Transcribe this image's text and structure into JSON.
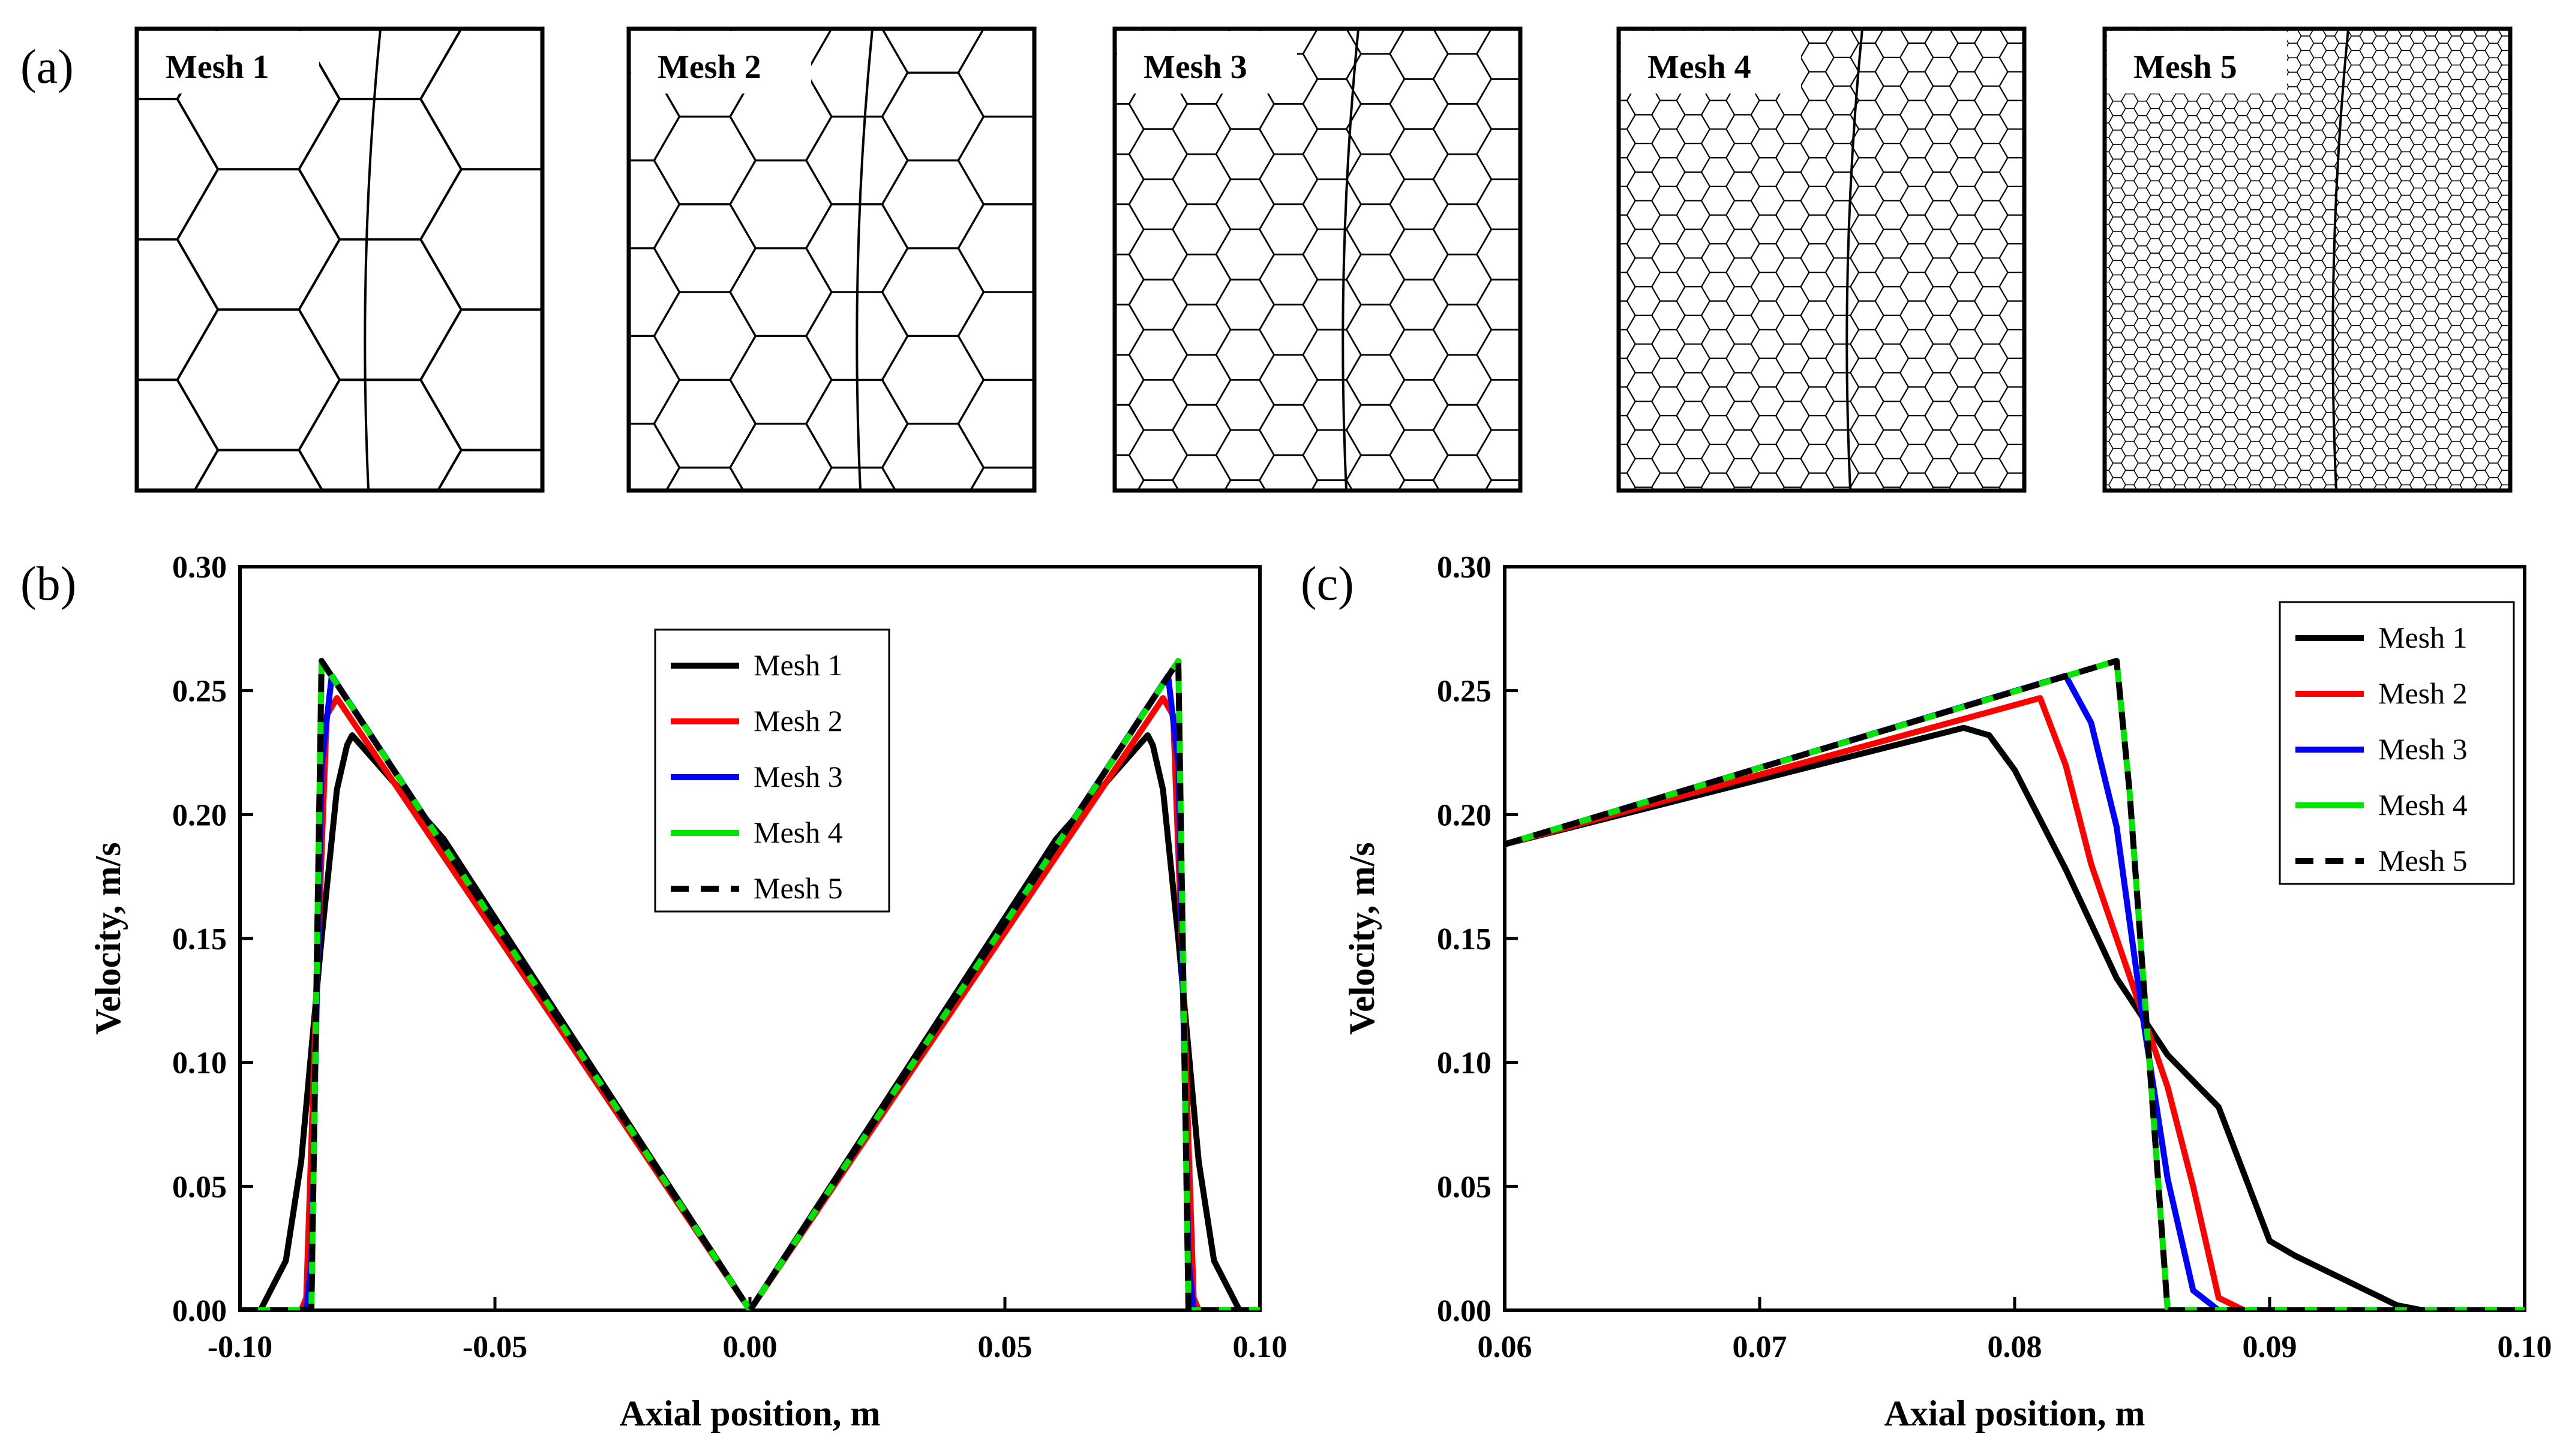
{
  "panels": {
    "a": {
      "tag": "(a)"
    },
    "b": {
      "tag": "(b)"
    },
    "c": {
      "tag": "(c)"
    }
  },
  "meshes": [
    {
      "label": "Mesh 1",
      "cells_across": 3
    },
    {
      "label": "Mesh 2",
      "cells_across": 5
    },
    {
      "label": "Mesh 3",
      "cells_across": 9
    },
    {
      "label": "Mesh 4",
      "cells_across": 16
    },
    {
      "label": "Mesh 5",
      "cells_across": 32
    }
  ],
  "colors": {
    "Mesh 1": "#000000",
    "Mesh 2": "#ff0000",
    "Mesh 3": "#0000ff",
    "Mesh 4": "#00e600",
    "Mesh 5": "#000000"
  },
  "chart_data": [
    {
      "id": "b",
      "type": "line",
      "title": "",
      "xlabel": "Axial position, m",
      "ylabel": "Velocity, m/s",
      "xlim": [
        -0.1,
        0.1
      ],
      "ylim": [
        0.0,
        0.3
      ],
      "xticks": [
        -0.1,
        -0.05,
        0.0,
        0.05,
        0.1
      ],
      "xtick_labels": [
        "-0.10",
        "-0.05",
        "0.00",
        "0.05",
        "0.10"
      ],
      "yticks": [
        0.0,
        0.05,
        0.1,
        0.15,
        0.2,
        0.25,
        0.3
      ],
      "ytick_labels": [
        "0.00",
        "0.05",
        "0.10",
        "0.15",
        "0.20",
        "0.25",
        "0.30"
      ],
      "legend_position": "upper-center",
      "series": [
        {
          "name": "Mesh 1",
          "dash": false,
          "x": [
            -0.1,
            -0.096,
            -0.091,
            -0.088,
            -0.084,
            -0.081,
            -0.079,
            -0.078,
            -0.06,
            0.0,
            0.06,
            0.078,
            0.079,
            0.081,
            0.084,
            0.088,
            0.091,
            0.096,
            0.1
          ],
          "y": [
            0.0,
            0.0,
            0.02,
            0.06,
            0.15,
            0.21,
            0.228,
            0.232,
            0.19,
            0.0,
            0.19,
            0.232,
            0.228,
            0.21,
            0.15,
            0.06,
            0.02,
            0.0,
            0.0
          ]
        },
        {
          "name": "Mesh 2",
          "dash": false,
          "x": [
            -0.1,
            -0.088,
            -0.087,
            -0.085,
            -0.083,
            -0.081,
            0.0,
            0.081,
            0.083,
            0.085,
            0.087,
            0.088,
            0.1
          ],
          "y": [
            0.0,
            0.0,
            0.005,
            0.13,
            0.24,
            0.247,
            0.0,
            0.247,
            0.24,
            0.13,
            0.005,
            0.0,
            0.0
          ]
        },
        {
          "name": "Mesh 3",
          "dash": false,
          "x": [
            -0.1,
            -0.087,
            -0.086,
            -0.084,
            -0.082,
            0.0,
            0.082,
            0.084,
            0.086,
            0.087,
            0.1
          ],
          "y": [
            0.0,
            0.0,
            0.02,
            0.22,
            0.256,
            0.0,
            0.256,
            0.22,
            0.02,
            0.0,
            0.0
          ]
        },
        {
          "name": "Mesh 4",
          "dash": false,
          "x": [
            -0.1,
            -0.086,
            -0.084,
            0.0,
            0.084,
            0.086,
            0.1
          ],
          "y": [
            0.0,
            0.0,
            0.262,
            0.0,
            0.262,
            0.0,
            0.0
          ]
        },
        {
          "name": "Mesh 5",
          "dash": true,
          "x": [
            -0.1,
            -0.086,
            -0.084,
            0.0,
            0.084,
            0.086,
            0.1
          ],
          "y": [
            0.0,
            0.0,
            0.262,
            0.0,
            0.262,
            0.0,
            0.0
          ]
        }
      ]
    },
    {
      "id": "c",
      "type": "line",
      "title": "",
      "xlabel": "Axial position, m",
      "ylabel": "Velocity, m/s",
      "xlim": [
        0.06,
        0.1
      ],
      "ylim": [
        0.0,
        0.3
      ],
      "xticks": [
        0.06,
        0.07,
        0.08,
        0.09,
        0.1
      ],
      "xtick_labels": [
        "0.06",
        "0.07",
        "0.08",
        "0.09",
        "0.10"
      ],
      "yticks": [
        0.0,
        0.05,
        0.1,
        0.15,
        0.2,
        0.25,
        0.3
      ],
      "ytick_labels": [
        "0.00",
        "0.05",
        "0.10",
        "0.15",
        "0.20",
        "0.25",
        "0.30"
      ],
      "legend_position": "upper-right",
      "series": [
        {
          "name": "Mesh 1",
          "dash": false,
          "x": [
            0.06,
            0.078,
            0.079,
            0.08,
            0.082,
            0.084,
            0.086,
            0.088,
            0.09,
            0.091,
            0.093,
            0.095,
            0.096,
            0.1
          ],
          "y": [
            0.188,
            0.235,
            0.232,
            0.218,
            0.178,
            0.134,
            0.103,
            0.082,
            0.028,
            0.022,
            0.012,
            0.002,
            0.0,
            0.0
          ]
        },
        {
          "name": "Mesh 2",
          "dash": false,
          "x": [
            0.06,
            0.081,
            0.082,
            0.083,
            0.084,
            0.085,
            0.086,
            0.087,
            0.088,
            0.089,
            0.1
          ],
          "y": [
            0.188,
            0.247,
            0.22,
            0.18,
            0.15,
            0.12,
            0.09,
            0.05,
            0.005,
            0.0,
            0.0
          ]
        },
        {
          "name": "Mesh 3",
          "dash": false,
          "x": [
            0.06,
            0.082,
            0.083,
            0.084,
            0.085,
            0.086,
            0.087,
            0.088,
            0.1
          ],
          "y": [
            0.188,
            0.256,
            0.237,
            0.195,
            0.12,
            0.053,
            0.008,
            0.0,
            0.0
          ]
        },
        {
          "name": "Mesh 4",
          "dash": false,
          "x": [
            0.06,
            0.084,
            0.0845,
            0.085,
            0.0855,
            0.086,
            0.1
          ],
          "y": [
            0.188,
            0.262,
            0.21,
            0.14,
            0.07,
            0.0,
            0.0
          ]
        },
        {
          "name": "Mesh 5",
          "dash": true,
          "x": [
            0.06,
            0.084,
            0.0845,
            0.085,
            0.0855,
            0.086,
            0.1
          ],
          "y": [
            0.188,
            0.262,
            0.21,
            0.14,
            0.07,
            0.0,
            0.0
          ]
        }
      ]
    }
  ]
}
